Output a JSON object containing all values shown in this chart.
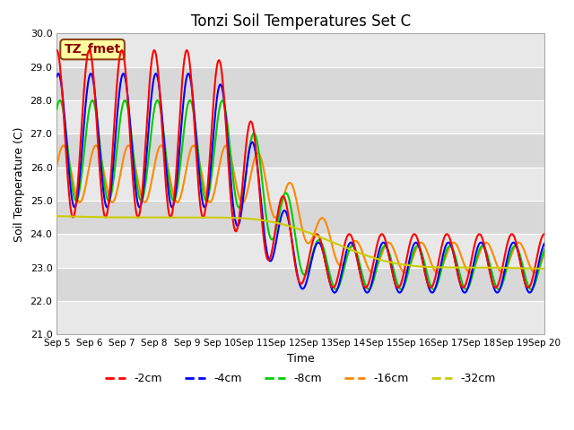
{
  "title": "Tonzi Soil Temperatures Set C",
  "xlabel": "Time",
  "ylabel": "Soil Temperature (C)",
  "ylim": [
    21.0,
    30.0
  ],
  "yticks": [
    21.0,
    22.0,
    23.0,
    24.0,
    25.0,
    26.0,
    27.0,
    28.0,
    29.0,
    30.0
  ],
  "xtick_labels": [
    "Sep 5",
    "Sep 6",
    "Sep 7",
    "Sep 8",
    "Sep 9",
    "Sep 10",
    "Sep 11",
    "Sep 12",
    "Sep 13",
    "Sep 14",
    "Sep 15",
    "Sep 16",
    "Sep 17",
    "Sep 18",
    "Sep 19",
    "Sep 20"
  ],
  "annotation": "TZ_fmet",
  "colors": {
    "-2cm": "#ff0000",
    "-4cm": "#0000ff",
    "-8cm": "#00cc00",
    "-16cm": "#ff8800",
    "-32cm": "#cccc00"
  },
  "line_width": 1.5,
  "background_color": "#ffffff",
  "band_colors": [
    "#e8e8e8",
    "#d8d8d8"
  ],
  "grid_color": "#ffffff"
}
